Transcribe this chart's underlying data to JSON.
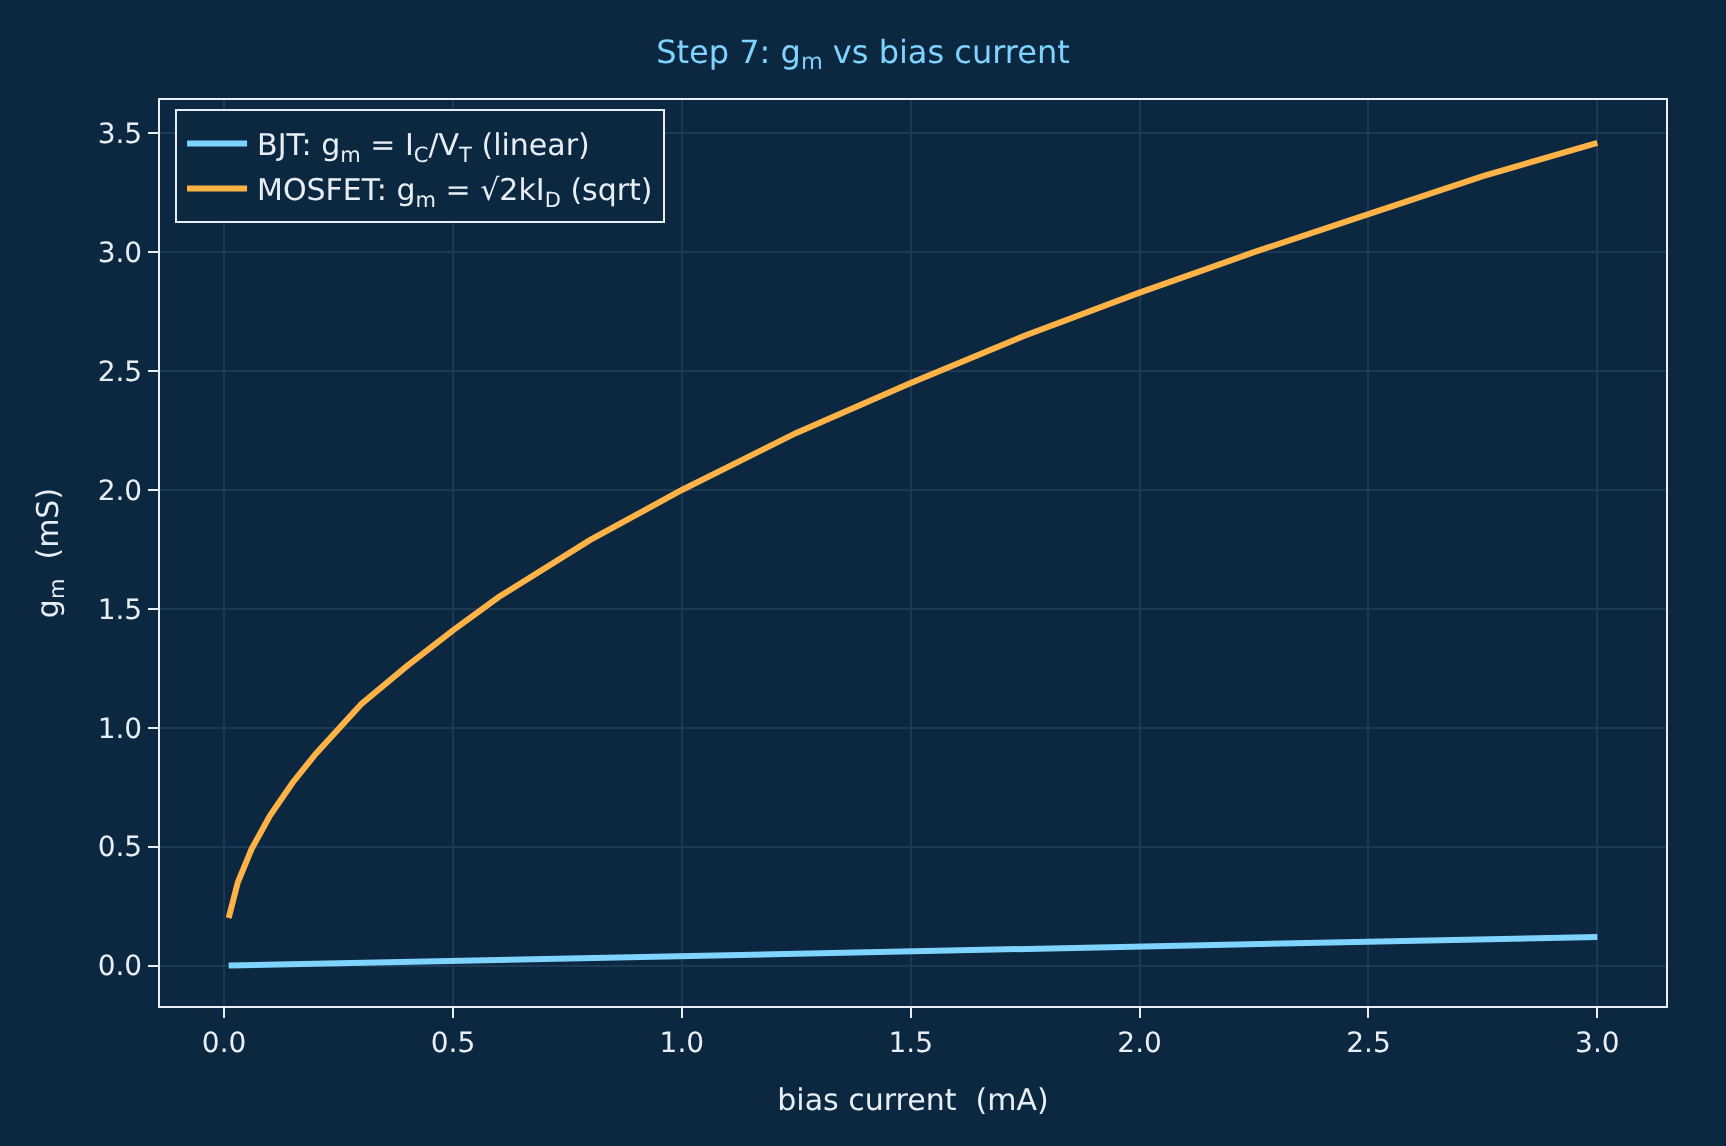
{
  "chart_data": {
    "type": "line",
    "title": "Step 7: g$_{m}$ vs bias current",
    "xlabel": "bias current  (mA)",
    "ylabel": "g$_{m}$  (mS)",
    "x": [
      0.01,
      0.03,
      0.06,
      0.1,
      0.15,
      0.2,
      0.3,
      0.4,
      0.5,
      0.6,
      0.8,
      1.0,
      1.25,
      1.5,
      1.75,
      2.0,
      2.25,
      2.5,
      2.75,
      3.0
    ],
    "series": [
      {
        "name": "BJT: g$_{m}$ = I$_{C}$/V$_{T}$ (linear)",
        "color": "#7fd3ff",
        "x": [
          0.01,
          3.0
        ],
        "values": [
          0.0,
          0.12
        ]
      },
      {
        "name": "MOSFET: g$_{m}$ = √2kI$_{D}$ (sqrt)",
        "color": "#ffb347",
        "values": [
          0.2,
          0.35,
          0.49,
          0.63,
          0.77,
          0.89,
          1.1,
          1.26,
          1.41,
          1.55,
          1.79,
          2.0,
          2.24,
          2.45,
          2.65,
          2.83,
          3.0,
          3.16,
          3.32,
          3.46
        ]
      }
    ],
    "xlim": [
      -0.14,
      3.15
    ],
    "ylim": [
      -0.17,
      3.64
    ],
    "xticks": [
      {
        "value": 0,
        "label": "0.0"
      },
      0.5,
      {
        "value": 1,
        "label": "1.0"
      },
      1.5,
      {
        "value": 2,
        "label": "2.0"
      },
      2.5,
      {
        "value": 3,
        "label": "3.0"
      }
    ],
    "yticks": [
      {
        "value": 0,
        "label": "0.0"
      },
      0.5,
      {
        "value": 1,
        "label": "1.0"
      },
      1.5,
      {
        "value": 2,
        "label": "2.0"
      },
      2.5,
      {
        "value": 3,
        "label": "3.0"
      },
      3.5
    ],
    "grid": true,
    "legend": "top left",
    "marker": "none",
    "line_style": "solid"
  }
}
